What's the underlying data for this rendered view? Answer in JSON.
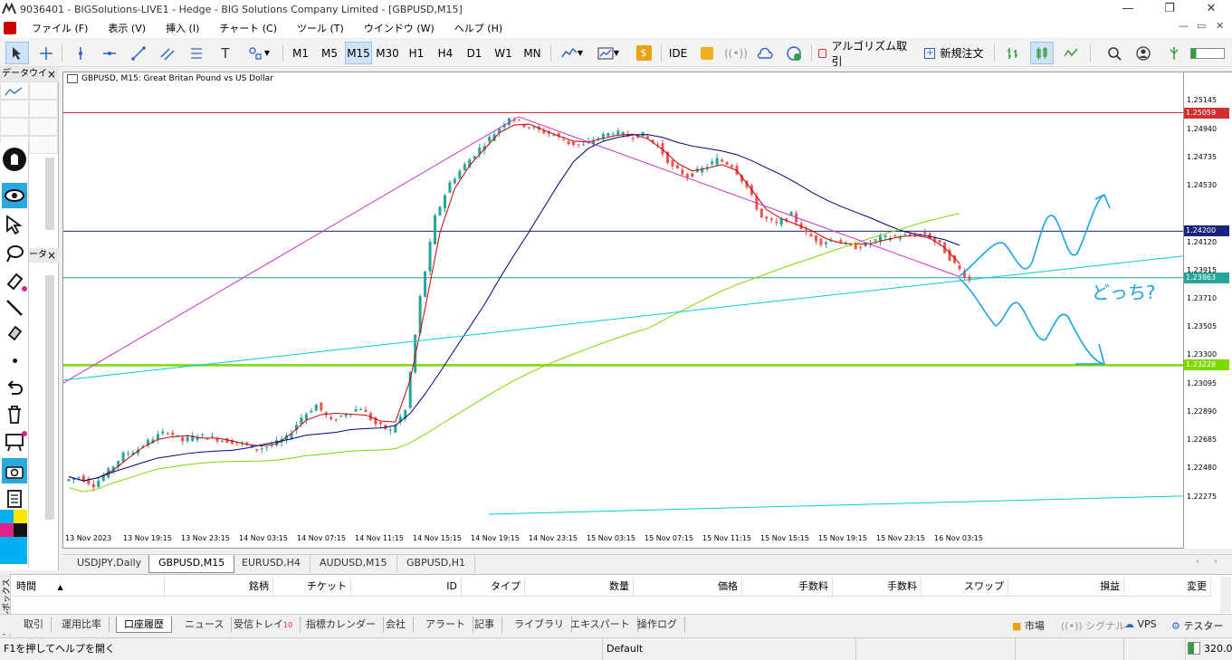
{
  "window": {
    "title": "9036401 - BIGSolutions-LIVE1 - Hedge - BIG Solutions Company Limited - [GBPUSD,M15]",
    "minimize": "—",
    "maximize": "❐",
    "close": "✕"
  },
  "menu": [
    "ファイル (F)",
    "表示 (V)",
    "挿入 (I)",
    "チャート (C)",
    "ツール (T)",
    "ウインドウ (W)",
    "ヘルプ (H)"
  ],
  "toolbar": {
    "timeframes": [
      "M1",
      "M5",
      "M15",
      "M30",
      "H1",
      "H4",
      "D1",
      "W1",
      "MN"
    ],
    "active_timeframe": "M15",
    "ide_label": "IDE",
    "algo_label": "アルゴリズム取引",
    "neworder_label": "新規注文"
  },
  "left_panel": {
    "market_watch_title": "データウイ",
    "navigator_title": "ータ"
  },
  "chart": {
    "header": "GBPUSD, M15:  Great Britan Pound vs US Dollar",
    "annotation_text": "どっち?",
    "accent_colors": {
      "bull": "#26a69a",
      "bear": "#ef5350",
      "ma_fast": "#cc0000",
      "ma_slow": "#000080",
      "ma_long": "#7fd800",
      "trend": "#cc33cc",
      "cyan": "#00d0e0",
      "resistance": "#cc0000"
    }
  },
  "chart_data": {
    "type": "candlestick",
    "symbol": "GBPUSD",
    "timeframe": "M15",
    "y_ticks": [
      "1.25145",
      "1.24940",
      "1.24735",
      "1.24530",
      "1.24120",
      "1.23915",
      "1.23710",
      "1.23505",
      "1.23300",
      "1.23095",
      "1.22890",
      "1.22685",
      "1.22480",
      "1.22275"
    ],
    "y_range": [
      1.222,
      1.2522
    ],
    "x_ticks": [
      "13 Nov 2023",
      "13 Nov 19:15",
      "13 Nov 23:15",
      "14 Nov 03:15",
      "14 Nov 07:15",
      "14 Nov 11:15",
      "14 Nov 15:15",
      "14 Nov 19:15",
      "14 Nov 23:15",
      "15 Nov 03:15",
      "15 Nov 07:15",
      "15 Nov 11:15",
      "15 Nov 15:15",
      "15 Nov 19:15",
      "15 Nov 23:15",
      "16 Nov 03:15"
    ],
    "price_marks": [
      {
        "label": "1.25059",
        "value": 1.25059,
        "color": "#d32f2f"
      },
      {
        "label": "1.24200",
        "value": 1.242,
        "color": "#1a237e"
      },
      {
        "label": "1.23863",
        "value": 1.23863,
        "color": "#26a69a"
      },
      {
        "label": "1.23228",
        "value": 1.23228,
        "color": "#7fd800"
      }
    ],
    "close_path": [
      1.2242,
      1.2236,
      1.2246,
      1.2258,
      1.2262,
      1.227,
      1.2275,
      1.2268,
      1.2272,
      1.227,
      1.2268,
      1.2266,
      1.2262,
      1.2265,
      1.227,
      1.2285,
      1.2294,
      1.2282,
      1.2288,
      1.2292,
      1.228,
      1.2275,
      1.229,
      1.2372,
      1.243,
      1.2455,
      1.2468,
      1.248,
      1.2491,
      1.2503,
      1.2497,
      1.2493,
      1.249,
      1.2484,
      1.2482,
      1.2488,
      1.2492,
      1.2489,
      1.249,
      1.2482,
      1.2466,
      1.246,
      1.2465,
      1.2472,
      1.2468,
      1.2452,
      1.243,
      1.2425,
      1.2432,
      1.2418,
      1.2412,
      1.2414,
      1.2408,
      1.241,
      1.2415,
      1.2416,
      1.2417,
      1.2418,
      1.241,
      1.2396,
      1.2384
    ]
  },
  "chart_tabs": [
    "USDJPY,Daily",
    "GBPUSD,M15",
    "EURUSD,H4",
    "AUDUSD,M15",
    "GBPUSD,H1"
  ],
  "active_chart_tab": "GBPUSD,M15",
  "terminal": {
    "columns": [
      "時間",
      "銘柄",
      "チケット",
      "ID",
      "タイプ",
      "数量",
      "価格",
      "手数料",
      "手数料",
      "スワップ",
      "損益",
      "変更"
    ],
    "vertical_label": "ツールボックス"
  },
  "bottom_tabs": [
    "取引",
    "運用比率",
    "口座履歴",
    "ニュース",
    "受信トレイ",
    "指標カレンダー",
    "会社",
    "アラート",
    "記事",
    "ライブラリ",
    "エキスパート",
    "操作ログ"
  ],
  "inbox_count": "10",
  "active_bottom_tab": "口座履歴",
  "bottom_right": [
    "市場",
    "シグナル",
    "VPS",
    "テスター"
  ],
  "status": {
    "help": "F1を押してヘルプを開く",
    "profile": "Default",
    "ping": "320.0"
  }
}
